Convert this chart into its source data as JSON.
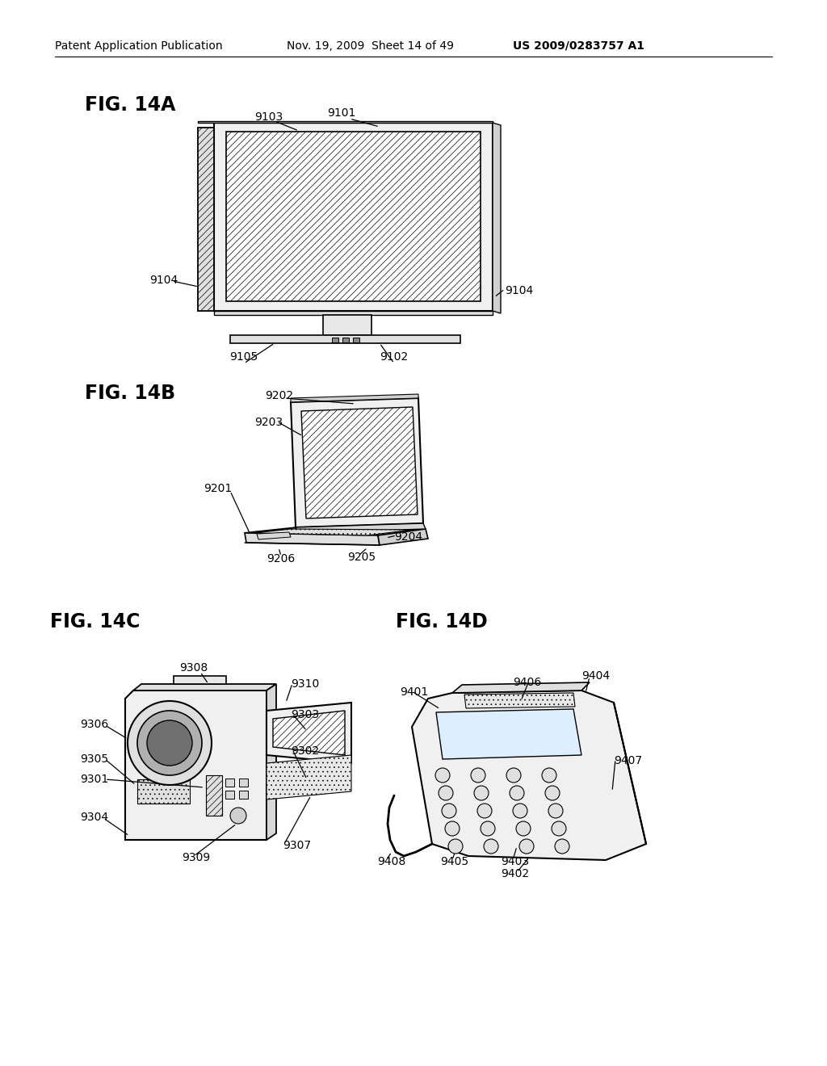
{
  "header_left": "Patent Application Publication",
  "header_mid": "Nov. 19, 2009  Sheet 14 of 49",
  "header_right": "US 2009/0283757 A1",
  "fig14a_label": "FIG. 14A",
  "fig14b_label": "FIG. 14B",
  "fig14c_label": "FIG. 14C",
  "fig14d_label": "FIG. 14D",
  "bg_color": "#ffffff",
  "line_color": "#000000",
  "font_color": "#000000",
  "hatch_lw": 0.4
}
